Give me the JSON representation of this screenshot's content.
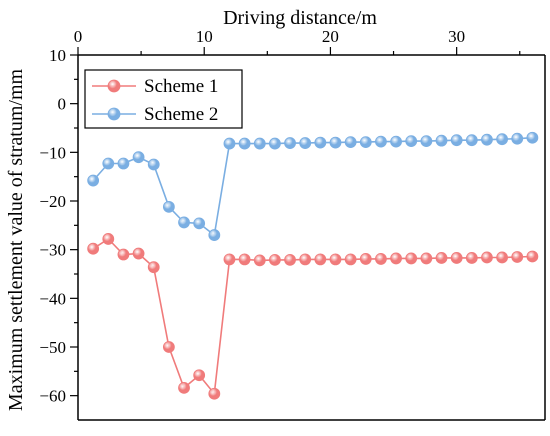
{
  "chart_data": {
    "type": "line",
    "title": "",
    "xlabel": "Driving distance/m",
    "ylabel": "Maximum settlement value of stratum/mm",
    "xlim": [
      0,
      37
    ],
    "ylim": [
      -65,
      10
    ],
    "x_ticks": [
      "0",
      "10",
      "20",
      "30"
    ],
    "y_ticks": [
      "10",
      "0",
      "−10",
      "−20",
      "−30",
      "−40",
      "−50",
      "−60"
    ],
    "x_axis_position": "top",
    "grid": false,
    "legend_position": "top-left",
    "x": [
      1.2,
      2.4,
      3.6,
      4.8,
      6.0,
      7.2,
      8.4,
      9.6,
      10.8,
      12.0,
      13.2,
      14.4,
      15.6,
      16.8,
      18.0,
      19.2,
      20.4,
      21.6,
      22.8,
      24.0,
      25.2,
      26.4,
      27.6,
      28.8,
      30.0,
      31.2,
      32.4,
      33.6,
      34.8,
      36.0
    ],
    "series": [
      {
        "name": "Scheme 1",
        "color": "#f07b7b",
        "values": [
          -29.8,
          -27.8,
          -31.0,
          -30.8,
          -33.6,
          -50.0,
          -58.4,
          -55.8,
          -59.6,
          -32.0,
          -32.0,
          -32.2,
          -32.1,
          -32.1,
          -32.0,
          -32.0,
          -32.0,
          -32.0,
          -31.9,
          -31.9,
          -31.8,
          -31.8,
          -31.8,
          -31.7,
          -31.7,
          -31.7,
          -31.6,
          -31.6,
          -31.5,
          -31.4
        ]
      },
      {
        "name": "Scheme 2",
        "color": "#7aaee2",
        "values": [
          -15.8,
          -12.3,
          -12.3,
          -11.0,
          -12.5,
          -21.2,
          -24.4,
          -24.6,
          -27.0,
          -8.2,
          -8.2,
          -8.2,
          -8.2,
          -8.1,
          -8.1,
          -8.0,
          -8.0,
          -7.9,
          -7.9,
          -7.8,
          -7.8,
          -7.7,
          -7.7,
          -7.6,
          -7.5,
          -7.5,
          -7.4,
          -7.3,
          -7.2,
          -7.0
        ]
      }
    ]
  }
}
